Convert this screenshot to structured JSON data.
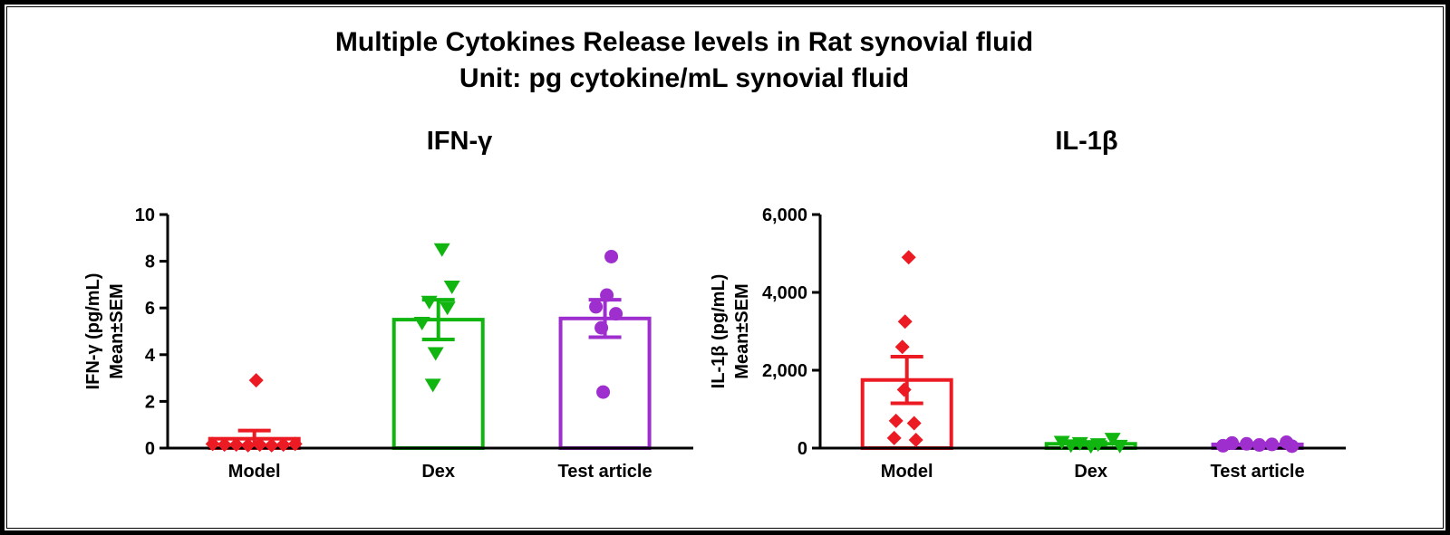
{
  "figure": {
    "title_line1": "Multiple Cytokines Release levels in Rat synovial fluid",
    "title_line2": "Unit: pg cytokine/mL synovial fluid"
  },
  "chart_data": [
    {
      "type": "bar-scatter",
      "title": "IFN-γ",
      "ylabel": [
        "IFN-γ (pg/mL)",
        "Mean±SEM"
      ],
      "ylim": [
        0,
        10
      ],
      "yticks": [
        {
          "value": 0,
          "label": "0"
        },
        {
          "value": 2,
          "label": "2"
        },
        {
          "value": 4,
          "label": "4"
        },
        {
          "value": 6,
          "label": "6"
        },
        {
          "value": 8,
          "label": "8"
        },
        {
          "value": 10,
          "label": "10"
        }
      ],
      "groups": [
        {
          "label": "Model",
          "color": "#EC1B23",
          "marker": "diamond",
          "mean": 0.4,
          "sem": 0.35,
          "points": [
            [
              2.9,
              2
            ],
            [
              0.18,
              -46
            ],
            [
              0.15,
              -33
            ],
            [
              0.15,
              -20
            ],
            [
              0.12,
              -7
            ],
            [
              0.15,
              6
            ],
            [
              0.12,
              19
            ],
            [
              0.15,
              32
            ],
            [
              0.18,
              45
            ]
          ]
        },
        {
          "label": "Dex",
          "color": "#10B510",
          "marker": "triangle-down",
          "mean": 5.5,
          "sem": 0.85,
          "points": [
            [
              8.5,
              4
            ],
            [
              6.9,
              15
            ],
            [
              6.25,
              -10
            ],
            [
              6.0,
              10
            ],
            [
              5.35,
              -18
            ],
            [
              4.05,
              -3
            ],
            [
              2.7,
              -6
            ]
          ]
        },
        {
          "label": "Test article",
          "color": "#9E2FCE",
          "marker": "circle",
          "mean": 5.55,
          "sem": 0.8,
          "points": [
            [
              8.2,
              7
            ],
            [
              6.55,
              2
            ],
            [
              6.05,
              -10
            ],
            [
              5.75,
              12
            ],
            [
              5.15,
              -4
            ],
            [
              2.4,
              -2
            ]
          ]
        }
      ]
    },
    {
      "type": "bar-scatter",
      "title": "IL-1β",
      "ylabel": [
        "IL-1β (pg/mL)",
        "Mean±SEM"
      ],
      "ylim": [
        0,
        6000
      ],
      "yticks": [
        {
          "value": 0,
          "label": "0"
        },
        {
          "value": 2000,
          "label": "2,000"
        },
        {
          "value": 4000,
          "label": "4,000"
        },
        {
          "value": 6000,
          "label": "6,000"
        }
      ],
      "groups": [
        {
          "label": "Model",
          "color": "#EC1B23",
          "marker": "diamond",
          "mean": 1750,
          "sem": 600,
          "points": [
            [
              4900,
              2
            ],
            [
              3250,
              -2
            ],
            [
              2600,
              -5
            ],
            [
              1500,
              -3
            ],
            [
              700,
              -12
            ],
            [
              640,
              8
            ],
            [
              260,
              -14
            ],
            [
              210,
              10
            ]
          ]
        },
        {
          "label": "Dex",
          "color": "#10B510",
          "marker": "triangle-down",
          "mean": 110,
          "sem": 45,
          "points": [
            [
              230,
              24
            ],
            [
              150,
              -32
            ],
            [
              120,
              -12
            ],
            [
              90,
              8
            ],
            [
              60,
              -22
            ],
            [
              50,
              32
            ],
            [
              40,
              0
            ]
          ]
        },
        {
          "label": "Test article",
          "color": "#9E2FCE",
          "marker": "circle",
          "mean": 95,
          "sem": 25,
          "points": [
            [
              150,
              32
            ],
            [
              130,
              -28
            ],
            [
              110,
              -12
            ],
            [
              95,
              16
            ],
            [
              80,
              2
            ],
            [
              60,
              -38
            ],
            [
              50,
              38
            ]
          ]
        }
      ]
    }
  ]
}
